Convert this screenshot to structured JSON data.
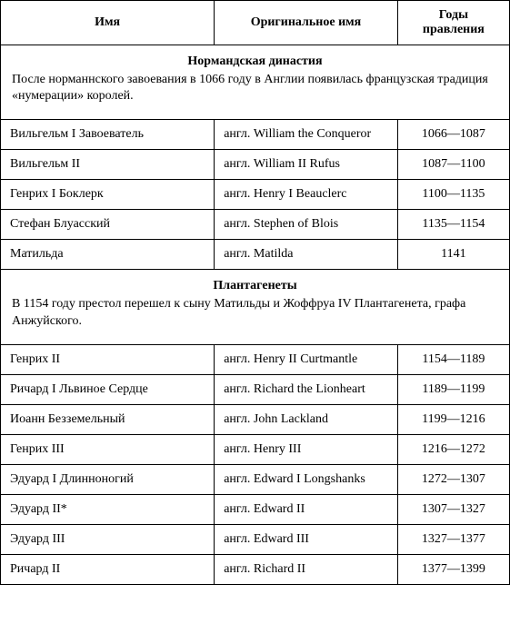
{
  "headers": {
    "name": "Имя",
    "original": "Оригинальное имя",
    "years": "Годы правления"
  },
  "sections": [
    {
      "title": "Нормандская династия",
      "description": "После норманнского завоевания в 1066 году в Англии появилась французская традиция «нумерации» королей.",
      "rows": [
        {
          "name": "Вильгельм I Завоеватель",
          "original": "англ. William the Conqueror",
          "years": "1066—1087"
        },
        {
          "name": "Вильгельм II",
          "original": "англ. William II Rufus",
          "years": "1087—1100"
        },
        {
          "name": "Генрих I Боклерк",
          "original": "англ. Henry I Beauclerc",
          "years": "1100—1135"
        },
        {
          "name": "Стефан Блуасский",
          "original": "англ. Stephen of Blois",
          "years": "1135—1154"
        },
        {
          "name": "Матильда",
          "original": "англ. Matilda",
          "years": "1141"
        }
      ]
    },
    {
      "title": "Плантагенеты",
      "description": "В 1154 году престол перешел к сыну Матильды и Жоффруа IV Плантагенета, графа Анжуйского.",
      "rows": [
        {
          "name": "Генрих II",
          "original": "англ. Henry II Curtmantle",
          "years": "1154—1189"
        },
        {
          "name": "Ричард I Львиное Сердце",
          "original": "англ. Richard the Lionheart",
          "years": "1189—1199"
        },
        {
          "name": "Иоанн Безземельный",
          "original": "англ. John Lackland",
          "years": "1199—1216"
        },
        {
          "name": "Генрих III",
          "original": "англ. Henry III",
          "years": "1216—1272"
        },
        {
          "name": "Эдуард I Длинноногий",
          "original": "англ. Edward I Longshanks",
          "years": "1272—1307"
        },
        {
          "name": "Эдуард II*",
          "original": "англ. Edward II",
          "years": "1307—1327"
        },
        {
          "name": "Эдуард III",
          "original": "англ. Edward III",
          "years": "1327—1377"
        },
        {
          "name": "Ричард II",
          "original": "англ. Richard II",
          "years": "1377—1399"
        }
      ]
    }
  ],
  "style": {
    "border_color": "#000000",
    "background_color": "#ffffff",
    "text_color": "#000000",
    "font_family": "Georgia, Times New Roman, serif",
    "base_font_size": 14,
    "col_widths_pct": [
      42,
      36,
      22
    ]
  }
}
